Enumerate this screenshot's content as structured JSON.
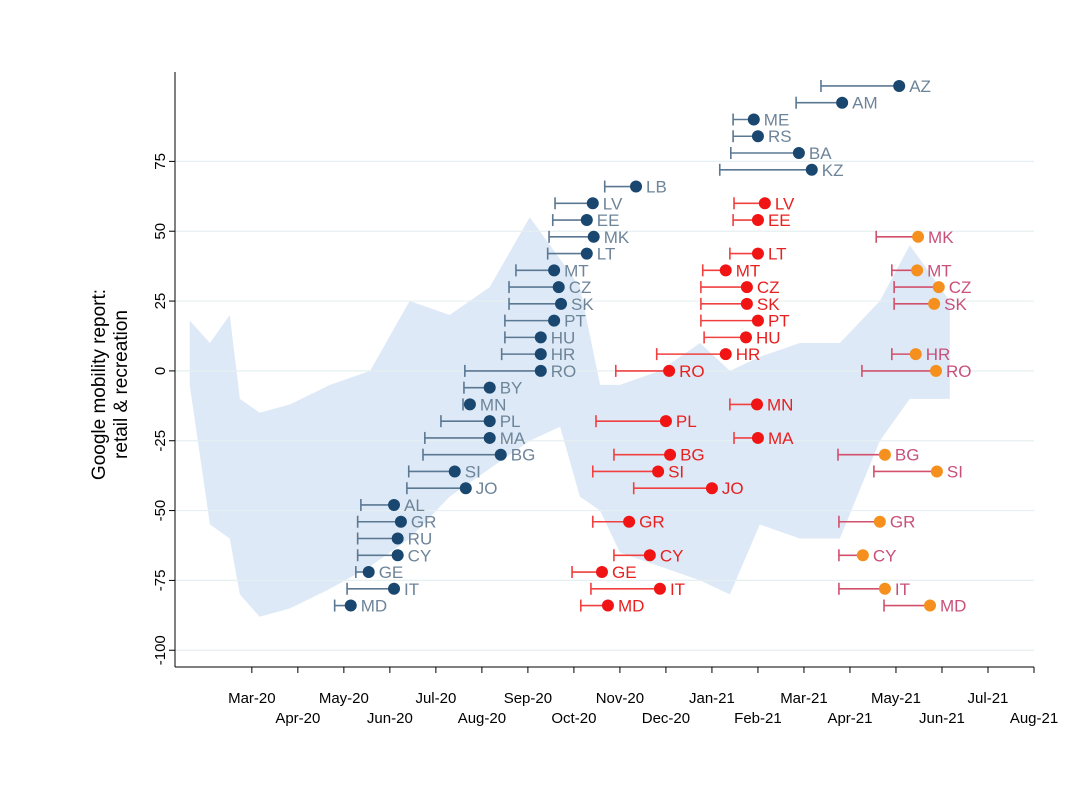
{
  "chart_data": {
    "type": "range-dot",
    "ylabel_lines": [
      "Google mobility report:",
      "retail & recreation"
    ],
    "xlim": [
      0.33,
      19
    ],
    "ylim": [
      -106,
      107
    ],
    "xticks": [
      {
        "value": 2,
        "label": "Mar-20"
      },
      {
        "value": 3,
        "label": "Apr-20"
      },
      {
        "value": 4,
        "label": "May-20"
      },
      {
        "value": 5,
        "label": "Jun-20"
      },
      {
        "value": 6,
        "label": "Jul-20"
      },
      {
        "value": 7,
        "label": "Aug-20"
      },
      {
        "value": 8,
        "label": "Sep-20"
      },
      {
        "value": 9,
        "label": "Oct-20"
      },
      {
        "value": 10,
        "label": "Nov-20"
      },
      {
        "value": 11,
        "label": "Dec-20"
      },
      {
        "value": 12,
        "label": "Jan-21"
      },
      {
        "value": 13,
        "label": "Feb-21"
      },
      {
        "value": 14,
        "label": "Mar-21"
      },
      {
        "value": 15,
        "label": "Apr-21"
      },
      {
        "value": 16,
        "label": "May-21"
      },
      {
        "value": 17,
        "label": "Jun-21"
      },
      {
        "value": 18,
        "label": "Jul-21"
      },
      {
        "value": 19,
        "label": "Aug-21"
      }
    ],
    "yticks": [
      -100,
      -75,
      -50,
      -25,
      0,
      25,
      50,
      75
    ],
    "grid": true,
    "band": {
      "color": "#dde9f6",
      "x": [
        0.65,
        1.09,
        1.52,
        1.74,
        2.17,
        2.83,
        3.7,
        4.57,
        5.43,
        6.3,
        7.17,
        8.04,
        8.7,
        9.13,
        9.57,
        10.0,
        10.87,
        11.74,
        12.39,
        13.04,
        13.91,
        14.78,
        15.65,
        16.3,
        17.17
      ],
      "upper": [
        18,
        10,
        20,
        -10,
        -15,
        -12,
        -5,
        0,
        25,
        20,
        30,
        55,
        40,
        30,
        -5,
        -5,
        0,
        10,
        0,
        5,
        10,
        10,
        25,
        45,
        25
      ],
      "lower": [
        -5,
        -55,
        -60,
        -80,
        -88,
        -85,
        -78,
        -70,
        -60,
        -45,
        -35,
        -25,
        -20,
        -45,
        -50,
        -65,
        -70,
        -75,
        -80,
        -55,
        -60,
        -60,
        -25,
        -10,
        -10
      ]
    },
    "series": [
      {
        "color": "#1a476f",
        "bar_color": "#5b7893",
        "label_color": "#6d8499",
        "labels": [
          "AZ",
          "AM",
          "ME",
          "RS",
          "BA",
          "KZ",
          "LB",
          "LV",
          "EE",
          "MK",
          "LT",
          "MT",
          "CZ",
          "SK",
          "PT",
          "HU",
          "HR",
          "RO",
          "BY",
          "MN",
          "PL",
          "MA",
          "BG",
          "SI",
          "JO",
          "AL",
          "GR",
          "RU",
          "CY",
          "GE",
          "IT",
          "MD"
        ],
        "x": [
          16.07,
          14.83,
          12.91,
          13.0,
          13.89,
          14.17,
          10.35,
          9.41,
          9.28,
          9.43,
          9.28,
          8.57,
          8.67,
          8.72,
          8.57,
          8.28,
          8.28,
          8.28,
          7.17,
          6.74,
          7.17,
          7.17,
          7.41,
          6.41,
          6.65,
          5.09,
          5.24,
          5.17,
          5.17,
          4.54,
          5.09,
          4.15
        ],
        "x_start": [
          14.37,
          13.83,
          12.46,
          12.46,
          12.41,
          12.17,
          9.67,
          8.59,
          8.54,
          8.46,
          8.43,
          7.74,
          7.59,
          7.59,
          7.5,
          7.5,
          7.43,
          6.63,
          6.61,
          6.59,
          6.11,
          5.76,
          5.72,
          5.41,
          5.37,
          4.37,
          4.3,
          4.3,
          4.3,
          4.26,
          4.07,
          3.8
        ],
        "values": [
          102,
          96,
          90,
          84,
          78,
          72,
          66,
          60,
          54,
          48,
          42,
          36,
          30,
          24,
          18,
          12,
          6,
          0,
          -6,
          -12,
          -18,
          -24,
          -30,
          -36,
          -42,
          -48,
          -54,
          -60,
          -66,
          -72,
          -78,
          -84
        ]
      },
      {
        "color": "#f01414",
        "bar_color": "#f04040",
        "label_color": "#e82020",
        "labels": [
          "LV",
          "EE",
          "LT",
          "MT",
          "CZ",
          "SK",
          "PT",
          "HU",
          "HR",
          "RO",
          "MN",
          "PL",
          "MA",
          "BG",
          "SI",
          "JO",
          "GR",
          "CY",
          "GE",
          "IT",
          "MD"
        ],
        "x": [
          13.15,
          13.0,
          13.0,
          12.3,
          12.76,
          12.76,
          13.0,
          12.74,
          12.3,
          11.07,
          12.98,
          11.0,
          13.0,
          11.09,
          10.83,
          12.0,
          10.2,
          10.65,
          9.61,
          10.87,
          9.74
        ],
        "x_start": [
          12.48,
          12.46,
          12.39,
          11.8,
          11.76,
          11.76,
          11.76,
          11.83,
          10.8,
          9.91,
          12.39,
          9.48,
          12.48,
          9.87,
          9.41,
          10.3,
          9.41,
          9.87,
          8.96,
          9.37,
          9.15
        ],
        "values": [
          60,
          54,
          42,
          36,
          30,
          24,
          18,
          12,
          6,
          0,
          -12,
          -18,
          -24,
          -30,
          -36,
          -42,
          -54,
          -66,
          -72,
          -78,
          -84
        ]
      },
      {
        "color": "#f5901e",
        "bar_color": "#d2506c",
        "label_color": "#c8507a",
        "labels": [
          "MK",
          "MT",
          "CZ",
          "SK",
          "HR",
          "RO",
          "BG",
          "SI",
          "GR",
          "CY",
          "IT",
          "MD"
        ],
        "x": [
          16.48,
          16.46,
          16.93,
          16.83,
          16.43,
          16.87,
          15.76,
          16.89,
          15.65,
          15.28,
          15.76,
          16.74
        ],
        "x_start": [
          15.57,
          15.91,
          15.96,
          15.96,
          15.91,
          15.26,
          14.74,
          15.52,
          14.76,
          14.76,
          14.76,
          15.74
        ],
        "values": [
          48,
          36,
          30,
          24,
          6,
          0,
          -30,
          -36,
          -54,
          -66,
          -78,
          -84
        ]
      }
    ]
  }
}
